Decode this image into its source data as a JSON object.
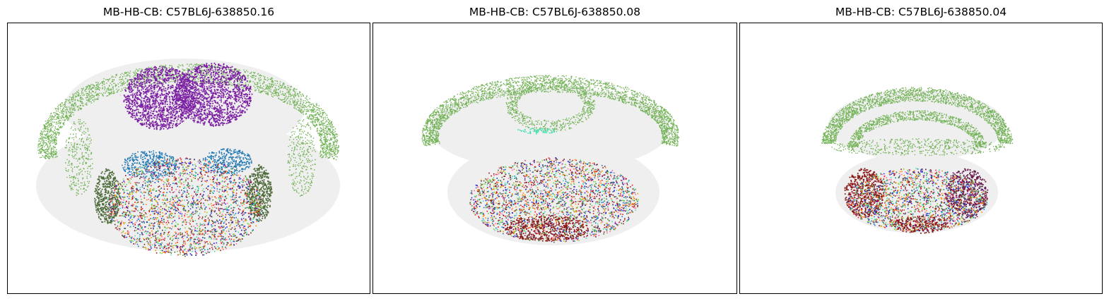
{
  "figure": {
    "panels": [
      {
        "title": "MB-HB-CB: C57BL6J-638850.16"
      },
      {
        "title": "MB-HB-CB: C57BL6J-638850.08"
      },
      {
        "title": "MB-HB-CB: C57BL6J-638850.04"
      }
    ],
    "colors": {
      "background_tissue": "#efefef",
      "cerebellum_green": "#72b256",
      "midbrain_purple": "#7b1fa2",
      "teal_blue": "#1f78b4",
      "dark_green": "#4e6b3a",
      "red": "#e31a1c",
      "dark_red": "#8b1a1a",
      "pink": "#ff6b9a",
      "aquamarine": "#40e0b0",
      "maroon_purple": "#6a1b4d"
    }
  }
}
